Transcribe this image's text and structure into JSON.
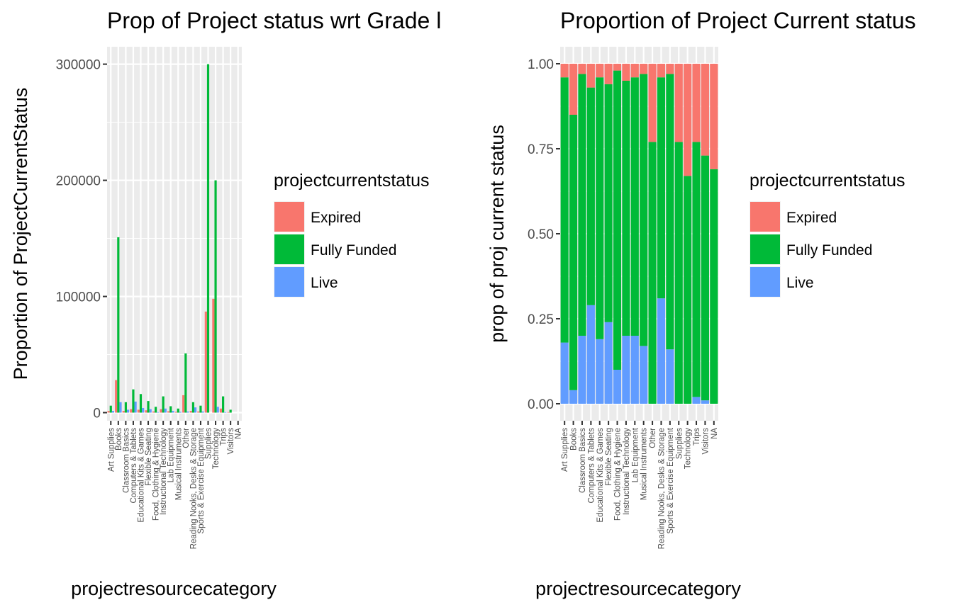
{
  "chart_data": [
    {
      "type": "bar",
      "subtype": "grouped",
      "title": "Prop of Project status wrt Grade l",
      "xlabel": "projectresourcecategory",
      "ylabel": "Proportion of ProjectCurrentStatus",
      "ylim": [
        -7000,
        315000
      ],
      "yticks": [
        0,
        100000,
        200000,
        300000
      ],
      "ytick_labels": [
        "0",
        "100000",
        "200000",
        "300000"
      ],
      "grid": true,
      "legend": {
        "position": "right",
        "title": "projectcurrentstatus"
      },
      "categories": [
        "Art Supplies",
        "Books",
        "Classroom Basics",
        "Computers & Tablets",
        "Educational Kits & Games",
        "Flexible Seating",
        "Food, Clothing & Hygiene",
        "Instructional Technology",
        "Lab Equipment",
        "Musical Instruments",
        "Other",
        "Reading Nooks, Desks & Storage",
        "Sports & Exercise Equipment",
        "Supplies",
        "Technology",
        "Trips",
        "Visitors",
        "NA"
      ],
      "series": [
        {
          "name": "Expired",
          "color": "#F8766D",
          "values": [
            1500,
            28000,
            1500,
            3000,
            2500,
            2000,
            1000,
            3000,
            1200,
            700,
            15000,
            1500,
            1000,
            87000,
            98000,
            3500,
            500,
            0
          ]
        },
        {
          "name": "Fully Funded",
          "color": "#00BA38",
          "values": [
            6000,
            151000,
            9000,
            20000,
            16000,
            10000,
            5000,
            14000,
            5500,
            3500,
            51000,
            9000,
            6000,
            300000,
            200000,
            14000,
            2500,
            0
          ]
        },
        {
          "name": "Live",
          "color": "#619CFF",
          "values": [
            1500,
            9000,
            2500,
            9500,
            4000,
            3000,
            500,
            3500,
            1500,
            700,
            1000,
            4500,
            1000,
            0,
            5000,
            500,
            0,
            0
          ]
        }
      ]
    },
    {
      "type": "bar",
      "subtype": "stacked-proportion",
      "title": "Proportion of Project Current status",
      "xlabel": "projectresourcecategory",
      "ylabel": "prop of proj current status",
      "ylim": [
        -0.05,
        1.05
      ],
      "yticks": [
        0,
        0.25,
        0.5,
        0.75,
        1.0
      ],
      "ytick_labels": [
        "0.00",
        "0.25",
        "0.50",
        "0.75",
        "1.00"
      ],
      "grid": true,
      "legend": {
        "position": "right",
        "title": "projectcurrentstatus"
      },
      "categories": [
        "Art Supplies",
        "Books",
        "Classroom Basics",
        "Computers & Tablets",
        "Educational Kits & Games",
        "Flexible Seating",
        "Food, Clothing & Hygiene",
        "Instructional Technology",
        "Lab Equipment",
        "Musical Instruments",
        "Other",
        "Reading Nooks, Desks & Storage",
        "Sports & Exercise Equipment",
        "Supplies",
        "Technology",
        "Trips",
        "Visitors",
        "NA"
      ],
      "series": [
        {
          "name": "Live",
          "color": "#619CFF",
          "values": [
            0.18,
            0.04,
            0.2,
            0.29,
            0.19,
            0.24,
            0.1,
            0.2,
            0.2,
            0.17,
            0.0,
            0.31,
            0.16,
            0.0,
            0.0,
            0.02,
            0.01,
            0.0
          ]
        },
        {
          "name": "Fully Funded",
          "color": "#00BA38",
          "values": [
            0.78,
            0.81,
            0.77,
            0.64,
            0.77,
            0.7,
            0.88,
            0.75,
            0.76,
            0.8,
            0.77,
            0.65,
            0.81,
            0.77,
            0.67,
            0.75,
            0.72,
            0.69
          ]
        },
        {
          "name": "Expired",
          "color": "#F8766D",
          "values": [
            0.04,
            0.15,
            0.03,
            0.07,
            0.04,
            0.06,
            0.02,
            0.05,
            0.04,
            0.03,
            0.23,
            0.04,
            0.03,
            0.23,
            0.33,
            0.23,
            0.27,
            0.31
          ]
        }
      ]
    }
  ]
}
